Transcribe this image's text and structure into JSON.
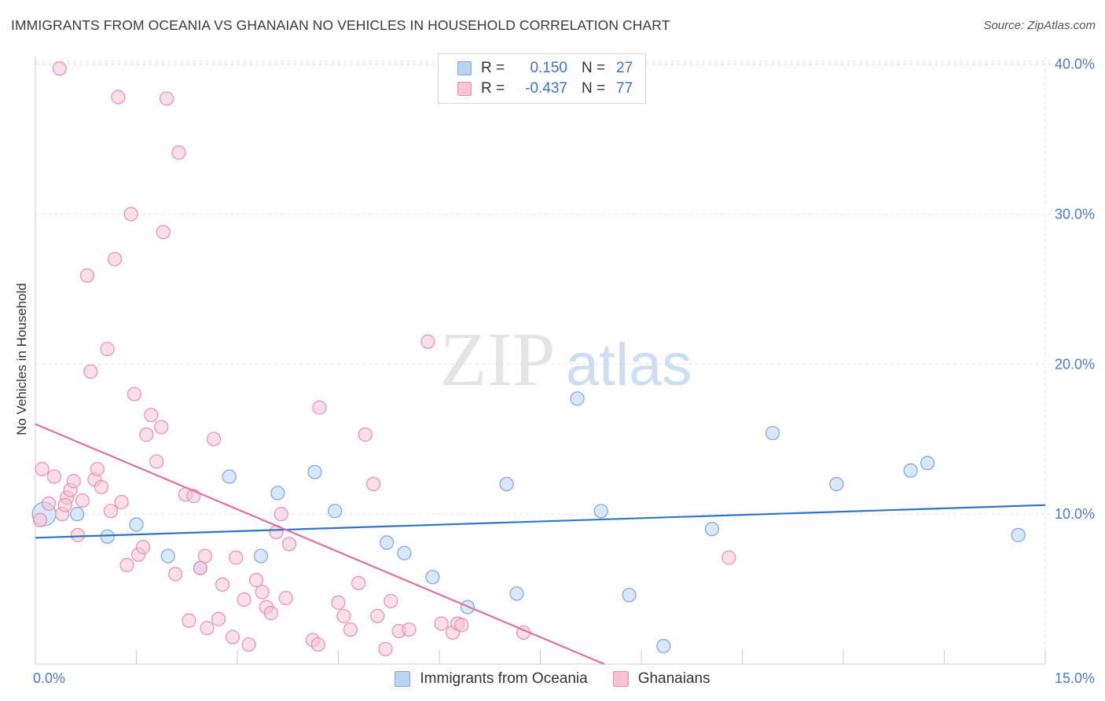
{
  "title": "IMMIGRANTS FROM OCEANIA VS GHANAIAN NO VEHICLES IN HOUSEHOLD CORRELATION CHART",
  "source": "Source: ZipAtlas.com",
  "watermark": {
    "zip": "ZIP",
    "atlas": "atlas"
  },
  "colors": {
    "blue_fill": "#b9d3f5",
    "blue_stroke": "#7aa6e3",
    "blue_line": "#2f74c9",
    "pink_fill": "#f8c3d4",
    "pink_stroke": "#eb8fae",
    "pink_line": "#e0709b",
    "grid": "#e2e2e2",
    "axis_text": "#4a7cc9"
  },
  "legend": {
    "rows": [
      {
        "series": "Immigrants from Oceania",
        "r_label": "R =",
        "r_value": "0.150",
        "n_label": "N =",
        "n_value": "27"
      },
      {
        "series": "Ghanaians",
        "r_label": "R =",
        "r_value": "-0.437",
        "n_label": "N =",
        "n_value": "77"
      }
    ]
  },
  "chart_data": {
    "type": "scatter",
    "title": "IMMIGRANTS FROM OCEANIA VS GHANAIAN NO VEHICLES IN HOUSEHOLD CORRELATION CHART",
    "xlabel": "",
    "ylabel": "No Vehicles in Household",
    "xlim": [
      0,
      15
    ],
    "ylim": [
      0,
      40.5
    ],
    "x_tick_labels": [
      {
        "value": 0,
        "label": "0.0%"
      },
      {
        "value": 15,
        "label": "15.0%"
      }
    ],
    "x_minor_ticks": [
      1.5,
      3.0,
      4.5,
      6.0,
      7.5,
      9.0,
      10.5,
      12.0,
      13.5,
      15.0
    ],
    "y_ticks": [
      {
        "value": 10,
        "label": "10.0%"
      },
      {
        "value": 20,
        "label": "20.0%"
      },
      {
        "value": 30,
        "label": "30.0%"
      },
      {
        "value": 40,
        "label": "40.0%"
      }
    ],
    "grid": true,
    "legend_position": "top-center",
    "series": [
      {
        "name": "Immigrants from Oceania",
        "color": "blue",
        "points": [
          [
            0.13,
            10.0
          ],
          [
            0.62,
            10.0
          ],
          [
            1.07,
            8.5
          ],
          [
            1.5,
            9.3
          ],
          [
            1.97,
            7.2
          ],
          [
            2.45,
            6.4
          ],
          [
            2.88,
            12.5
          ],
          [
            3.35,
            7.2
          ],
          [
            3.6,
            11.4
          ],
          [
            4.15,
            12.8
          ],
          [
            4.45,
            10.2
          ],
          [
            5.22,
            8.1
          ],
          [
            5.48,
            7.4
          ],
          [
            5.9,
            5.8
          ],
          [
            6.42,
            3.8
          ],
          [
            7.0,
            12.0
          ],
          [
            7.15,
            4.7
          ],
          [
            8.05,
            17.7
          ],
          [
            8.4,
            10.2
          ],
          [
            8.82,
            4.6
          ],
          [
            9.33,
            1.2
          ],
          [
            10.05,
            9.0
          ],
          [
            10.95,
            15.4
          ],
          [
            11.9,
            12.0
          ],
          [
            13.0,
            12.9
          ],
          [
            13.25,
            13.4
          ],
          [
            14.6,
            8.6
          ]
        ],
        "trend": {
          "x0": 0.0,
          "y0": 8.42,
          "x1": 15.0,
          "y1": 10.6
        }
      },
      {
        "name": "Ghanaians",
        "color": "pink",
        "points": [
          [
            0.07,
            9.6
          ],
          [
            0.1,
            13.0
          ],
          [
            0.2,
            10.7
          ],
          [
            0.28,
            12.5
          ],
          [
            0.36,
            39.7
          ],
          [
            0.4,
            10.0
          ],
          [
            0.47,
            11.1
          ],
          [
            0.52,
            11.6
          ],
          [
            0.57,
            12.2
          ],
          [
            0.63,
            8.6
          ],
          [
            0.7,
            10.9
          ],
          [
            0.77,
            25.9
          ],
          [
            0.82,
            19.5
          ],
          [
            0.88,
            12.3
          ],
          [
            0.92,
            13.0
          ],
          [
            0.98,
            11.8
          ],
          [
            1.07,
            21.0
          ],
          [
            1.12,
            10.2
          ],
          [
            1.18,
            27.0
          ],
          [
            1.23,
            37.8
          ],
          [
            1.28,
            10.8
          ],
          [
            1.36,
            6.6
          ],
          [
            1.42,
            30.0
          ],
          [
            1.47,
            18.0
          ],
          [
            1.53,
            7.3
          ],
          [
            1.6,
            7.8
          ],
          [
            1.65,
            15.3
          ],
          [
            1.72,
            16.6
          ],
          [
            1.8,
            13.5
          ],
          [
            1.87,
            15.8
          ],
          [
            1.9,
            28.8
          ],
          [
            1.95,
            37.7
          ],
          [
            2.08,
            6.0
          ],
          [
            2.13,
            34.1
          ],
          [
            2.23,
            11.3
          ],
          [
            2.28,
            2.9
          ],
          [
            2.35,
            11.2
          ],
          [
            2.45,
            6.4
          ],
          [
            2.52,
            7.2
          ],
          [
            2.55,
            2.4
          ],
          [
            2.65,
            15.0
          ],
          [
            2.72,
            3.0
          ],
          [
            2.78,
            5.3
          ],
          [
            2.93,
            1.8
          ],
          [
            2.98,
            7.1
          ],
          [
            3.1,
            4.3
          ],
          [
            3.17,
            1.3
          ],
          [
            3.28,
            5.6
          ],
          [
            3.37,
            4.8
          ],
          [
            3.43,
            3.8
          ],
          [
            3.5,
            3.4
          ],
          [
            3.58,
            8.8
          ],
          [
            3.65,
            10.0
          ],
          [
            3.72,
            4.4
          ],
          [
            3.77,
            8.0
          ],
          [
            4.12,
            1.6
          ],
          [
            4.2,
            1.3
          ],
          [
            4.22,
            17.1
          ],
          [
            4.5,
            4.1
          ],
          [
            4.58,
            3.2
          ],
          [
            4.68,
            2.3
          ],
          [
            4.8,
            5.4
          ],
          [
            4.9,
            15.3
          ],
          [
            5.02,
            12.0
          ],
          [
            5.08,
            3.2
          ],
          [
            5.2,
            1.0
          ],
          [
            5.28,
            4.2
          ],
          [
            5.4,
            2.2
          ],
          [
            5.55,
            2.3
          ],
          [
            5.83,
            21.5
          ],
          [
            6.03,
            2.7
          ],
          [
            6.2,
            2.1
          ],
          [
            6.27,
            2.7
          ],
          [
            6.33,
            2.6
          ],
          [
            7.25,
            2.1
          ],
          [
            10.3,
            7.1
          ],
          [
            0.44,
            10.6
          ]
        ],
        "trend": {
          "x0": 0.0,
          "y0": 16.0,
          "x1": 8.45,
          "y1": 0.0
        }
      }
    ]
  }
}
